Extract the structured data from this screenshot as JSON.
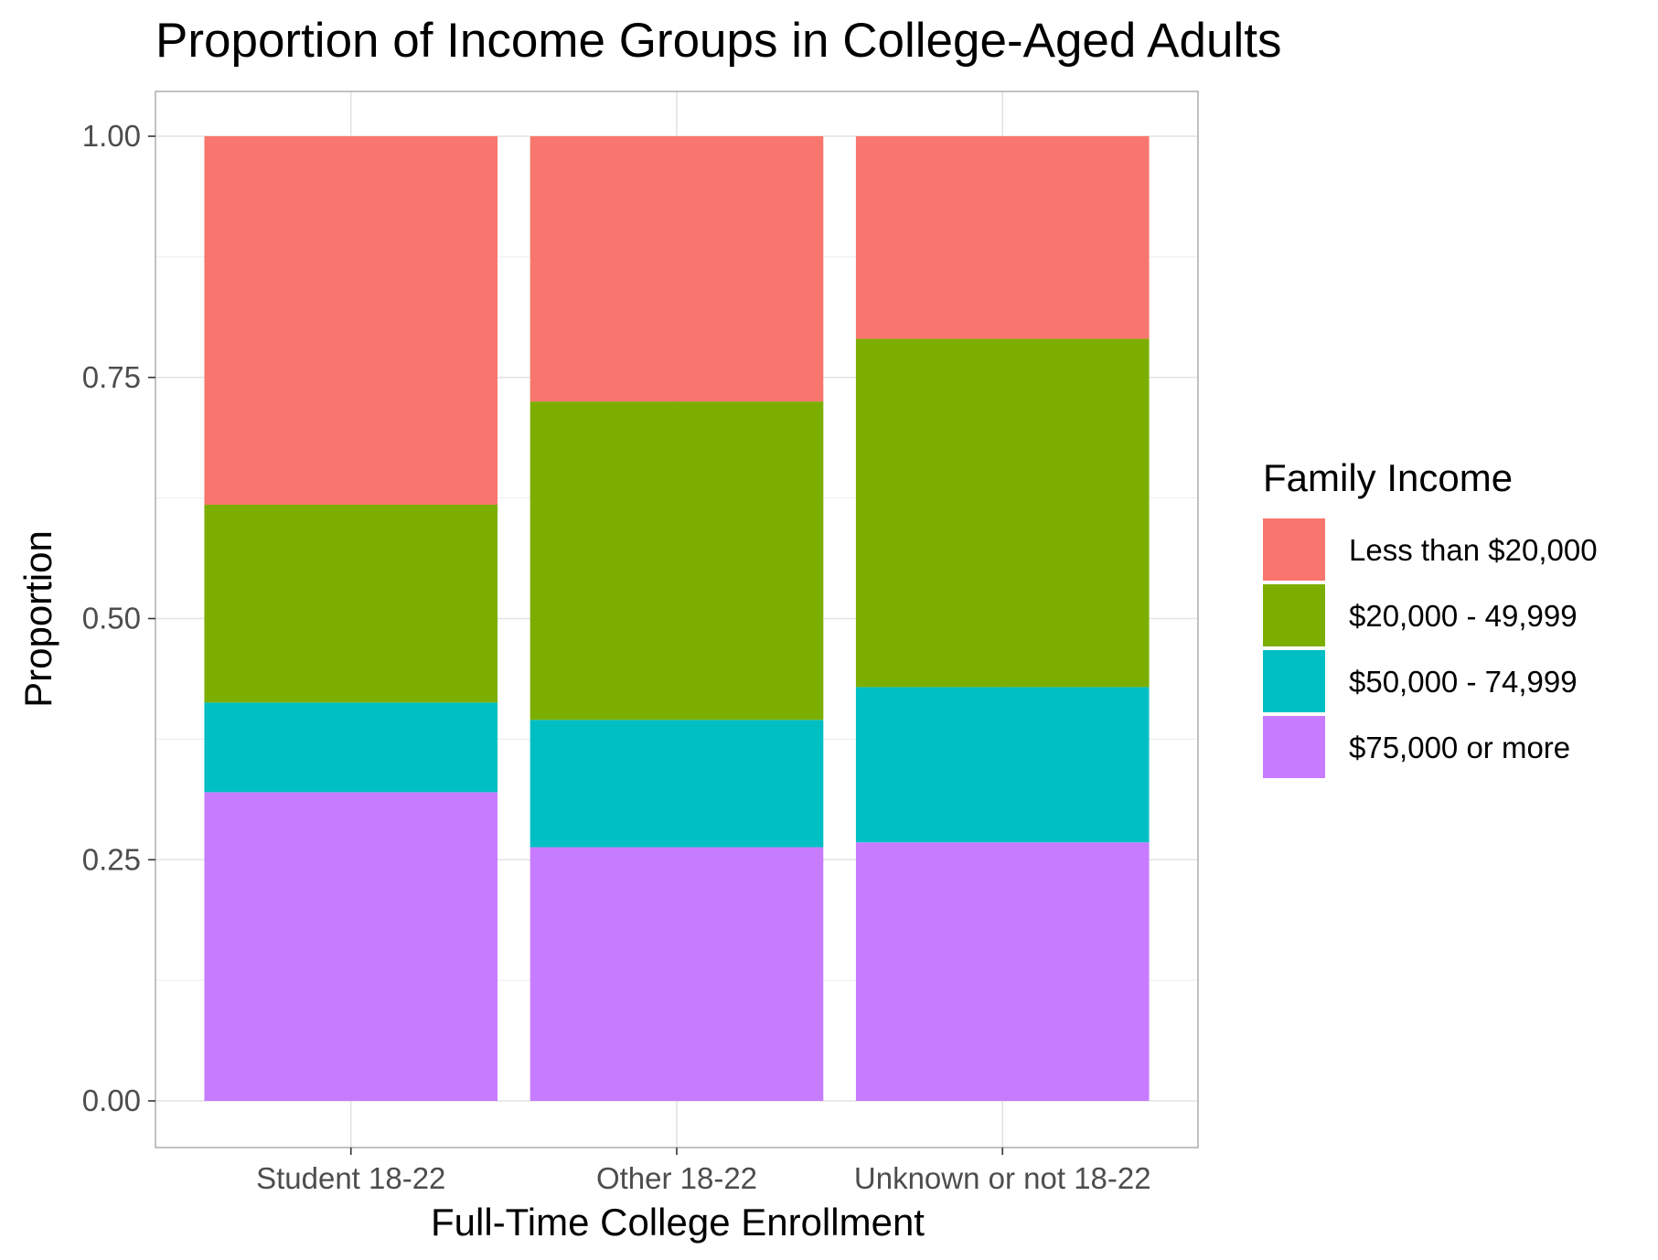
{
  "chart_data": {
    "type": "bar",
    "stacked": true,
    "title": "Proportion of Income Groups in College-Aged Adults",
    "xlabel": "Full-Time College Enrollment",
    "ylabel": "Proportion",
    "categories": [
      "Student 18-22",
      "Other 18-22",
      "Unknown or not 18-22"
    ],
    "ylim": [
      0,
      1
    ],
    "yticks": [
      "0.00",
      "0.25",
      "0.50",
      "0.75",
      "1.00"
    ],
    "ytick_values": [
      0,
      0.25,
      0.5,
      0.75,
      1.0
    ],
    "grid": true,
    "legend": {
      "title": "Family Income",
      "position": "right"
    },
    "series": [
      {
        "name": "$75,000 or more",
        "color": "#C77CFF",
        "values": [
          0.32,
          0.263,
          0.268
        ]
      },
      {
        "name": "$50,000 - 74,999",
        "color": "#00BFC4",
        "values": [
          0.093,
          0.132,
          0.161
        ]
      },
      {
        "name": "$20,000 - 49,999",
        "color": "#7CAE00",
        "values": [
          0.205,
          0.33,
          0.361
        ]
      },
      {
        "name": "Less than $20,000",
        "color": "#F8766D",
        "values": [
          0.382,
          0.275,
          0.21
        ]
      }
    ]
  }
}
